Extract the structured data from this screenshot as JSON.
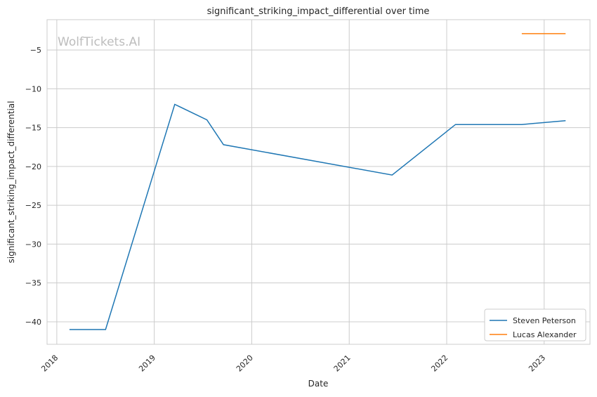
{
  "chart_data": {
    "type": "line",
    "title": "significant_striking_impact_differential over time",
    "xlabel": "Date",
    "ylabel": "significant_striking_impact_differential",
    "xlim": [
      2017.9,
      2023.47
    ],
    "ylim": [
      -42.9,
      -1.1
    ],
    "xticks": [
      2018,
      2019,
      2020,
      2021,
      2022,
      2023
    ],
    "yticks": [
      -40,
      -35,
      -30,
      -25,
      -20,
      -15,
      -10,
      -5
    ],
    "grid": true,
    "legend_position": "bottom-right",
    "watermark": "WolfTickets.AI",
    "series": [
      {
        "name": "Steven Peterson",
        "color": "#1f77b4",
        "x": [
          2018.13,
          2018.5,
          2019.21,
          2019.54,
          2019.71,
          2021.44,
          2022.09,
          2022.77,
          2023.22
        ],
        "y": [
          -41,
          -41,
          -12,
          -14,
          -17.2,
          -21.1,
          -14.6,
          -14.6,
          -14.1
        ]
      },
      {
        "name": "Lucas Alexander",
        "color": "#ff7f0e",
        "x": [
          2022.77,
          2023.22
        ],
        "y": [
          -2.9,
          -2.9
        ]
      }
    ]
  }
}
